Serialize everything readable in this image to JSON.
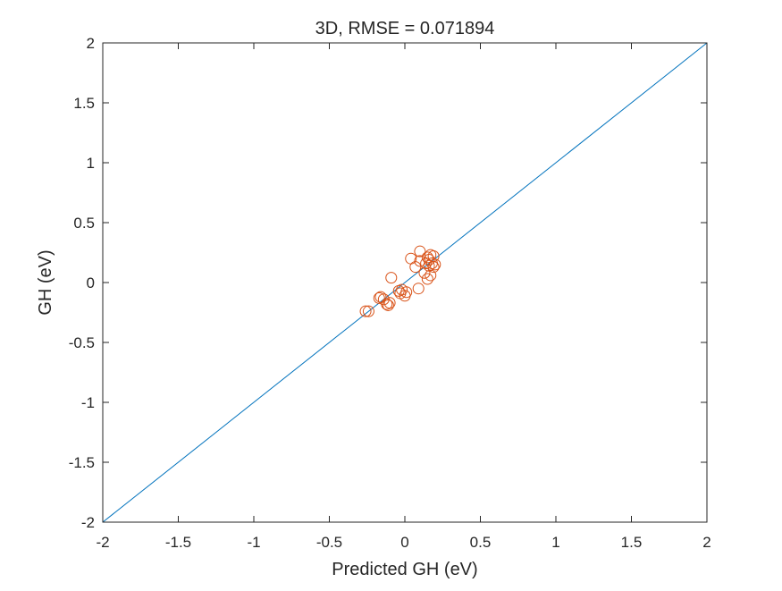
{
  "chart_data": {
    "type": "scatter",
    "title": "3D, RMSE = 0.071894",
    "xlabel": "Predicted GH (eV)",
    "ylabel": "GH (eV)",
    "xlim": [
      -2,
      2
    ],
    "ylim": [
      -2,
      2
    ],
    "xticks": [
      -2,
      -1.5,
      -1,
      -0.5,
      0,
      0.5,
      1,
      1.5,
      2
    ],
    "yticks": [
      -2,
      -1.5,
      -1,
      -0.5,
      0,
      0.5,
      1,
      1.5,
      2
    ],
    "xtick_labels": [
      "-2",
      "-1.5",
      "-1",
      "-0.5",
      "0",
      "0.5",
      "1",
      "1.5",
      "2"
    ],
    "ytick_labels": [
      "-2",
      "-1.5",
      "-1",
      "-0.5",
      "0",
      "0.5",
      "1",
      "1.5",
      "2"
    ],
    "grid": false,
    "reference_line": {
      "x": [
        -2,
        2
      ],
      "y": [
        -2,
        2
      ],
      "color": "#0072BD"
    },
    "series": [
      {
        "marker": "circle-open",
        "color": "#D95319",
        "points": [
          [
            -0.26,
            -0.24
          ],
          [
            -0.24,
            -0.24
          ],
          [
            -0.17,
            -0.13
          ],
          [
            -0.16,
            -0.12
          ],
          [
            -0.14,
            -0.14
          ],
          [
            -0.12,
            -0.18
          ],
          [
            -0.11,
            -0.19
          ],
          [
            -0.1,
            -0.17
          ],
          [
            -0.09,
            0.04
          ],
          [
            -0.04,
            -0.07
          ],
          [
            -0.03,
            -0.09
          ],
          [
            -0.02,
            -0.06
          ],
          [
            0.0,
            -0.11
          ],
          [
            0.01,
            -0.08
          ],
          [
            0.04,
            0.2
          ],
          [
            0.07,
            0.13
          ],
          [
            0.09,
            -0.05
          ],
          [
            0.1,
            0.26
          ],
          [
            0.1,
            0.18
          ],
          [
            0.13,
            0.08
          ],
          [
            0.14,
            0.16
          ],
          [
            0.15,
            0.21
          ],
          [
            0.15,
            0.03
          ],
          [
            0.16,
            0.19
          ],
          [
            0.16,
            0.14
          ],
          [
            0.17,
            0.23
          ],
          [
            0.17,
            0.06
          ],
          [
            0.18,
            0.16
          ],
          [
            0.19,
            0.22
          ],
          [
            0.19,
            0.13
          ],
          [
            0.2,
            0.15
          ]
        ]
      }
    ]
  }
}
